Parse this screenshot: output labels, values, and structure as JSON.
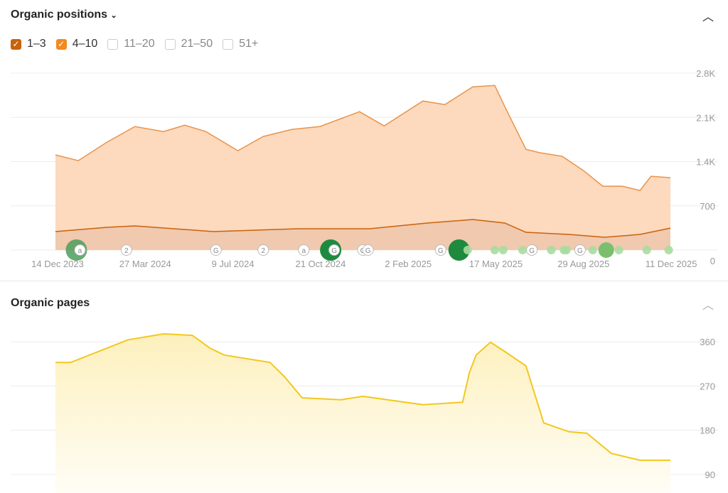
{
  "sections": {
    "positions_title": "Organic positions",
    "pages_title": "Organic pages",
    "dropdown_icon": "chevron-down-icon",
    "collapse_icon": "chevron-up-icon"
  },
  "filters": [
    {
      "label": "1–3",
      "checked": true,
      "color": "#c8620c"
    },
    {
      "label": "4–10",
      "checked": true,
      "color": "#f28a1e"
    },
    {
      "label": "11–20",
      "checked": false
    },
    {
      "label": "21–50",
      "checked": false
    },
    {
      "label": "51+",
      "checked": false
    }
  ],
  "chart_data": [
    {
      "type": "area",
      "stacked": true,
      "y_ticks": [
        "0",
        "700",
        "1.4K",
        "2.1K",
        "2.8K"
      ],
      "ylim": [
        0,
        2800
      ],
      "grid": true,
      "x_ticks": [
        "14 Dec 2023",
        "27 Mar 2024",
        "9 Jul 2024",
        "21 Oct 2024",
        "2 Feb 2025",
        "17 May 2025",
        "29 Aug 2025",
        "11 Dec 2025"
      ],
      "total": {
        "color": "#e8944a",
        "fill": "#fdd9bd",
        "points": [
          [
            "2023-12-14",
            1506
          ],
          [
            "2024-01-10",
            1416
          ],
          [
            "2024-02-13",
            1708
          ],
          [
            "2024-03-17",
            1955
          ],
          [
            "2024-04-20",
            1876
          ],
          [
            "2024-05-15",
            1977
          ],
          [
            "2024-06-09",
            1876
          ],
          [
            "2024-07-17",
            1573
          ],
          [
            "2024-08-16",
            1798
          ],
          [
            "2024-09-19",
            1910
          ],
          [
            "2024-10-22",
            1955
          ],
          [
            "2024-12-08",
            2191
          ],
          [
            "2025-01-06",
            1966
          ],
          [
            "2025-02-21",
            2359
          ],
          [
            "2025-03-19",
            2303
          ],
          [
            "2025-04-21",
            2584
          ],
          [
            "2025-05-17",
            2606
          ],
          [
            "2025-05-29",
            2269
          ],
          [
            "2025-06-23",
            1595
          ],
          [
            "2025-07-10",
            1539
          ],
          [
            "2025-08-05",
            1483
          ],
          [
            "2025-08-30",
            1258
          ],
          [
            "2025-09-22",
            1011
          ],
          [
            "2025-10-15",
            1011
          ],
          [
            "2025-11-05",
            944
          ],
          [
            "2025-11-18",
            1168
          ],
          [
            "2025-12-11",
            1146
          ]
        ]
      },
      "series_1_3": {
        "color": "#c8620c",
        "fill": "#f0c9ae",
        "points": [
          [
            "2023-12-14",
            292
          ],
          [
            "2024-02-13",
            360
          ],
          [
            "2024-03-17",
            382
          ],
          [
            "2024-06-18",
            292
          ],
          [
            "2024-09-27",
            337
          ],
          [
            "2024-12-20",
            337
          ],
          [
            "2025-02-26",
            427
          ],
          [
            "2025-04-21",
            483
          ],
          [
            "2025-05-29",
            427
          ],
          [
            "2025-06-23",
            281
          ],
          [
            "2025-08-13",
            247
          ],
          [
            "2025-09-24",
            202
          ],
          [
            "2025-11-05",
            247
          ],
          [
            "2025-12-11",
            348
          ]
        ]
      },
      "annotations": [
        [
          "2024-01-12",
          "a",
          "big"
        ],
        [
          "2024-03-07",
          "2",
          ""
        ],
        [
          "2024-06-21",
          "G",
          ""
        ],
        [
          "2024-08-16",
          "2",
          ""
        ],
        [
          "2024-10-03",
          "a",
          ""
        ],
        [
          "2024-11-08",
          "G",
          "bigdark"
        ],
        [
          "2024-12-12",
          "G",
          ""
        ],
        [
          "2024-12-18",
          "G",
          ""
        ],
        [
          "2025-03-14",
          "G",
          ""
        ],
        [
          "2025-04-09",
          "",
          "bigdark"
        ],
        [
          "2025-04-15",
          "",
          "light"
        ],
        [
          "2025-05-17",
          "",
          "light"
        ],
        [
          "2025-05-27",
          "",
          "light"
        ],
        [
          "2025-06-19",
          "",
          "light"
        ],
        [
          "2025-06-30",
          "G",
          ""
        ],
        [
          "2025-07-23",
          "",
          "light"
        ],
        [
          "2025-08-07",
          "",
          "light"
        ],
        [
          "2025-08-10",
          "",
          "light"
        ],
        [
          "2025-08-26",
          "G",
          ""
        ],
        [
          "2025-09-10",
          "",
          "light"
        ],
        [
          "2025-09-26",
          "",
          "bigmid"
        ],
        [
          "2025-10-11",
          "",
          "light"
        ],
        [
          "2025-11-13",
          "",
          "light"
        ],
        [
          "2025-12-09",
          "",
          "light"
        ]
      ]
    },
    {
      "type": "area",
      "y_ticks": [
        "90",
        "180",
        "270",
        "360"
      ],
      "ylim": [
        90,
        360
      ],
      "grid": true,
      "color": "#f2c81e",
      "fill": "#fdf3c8",
      "points": [
        [
          "2023-12-14",
          318
        ],
        [
          "2024-01-01",
          318
        ],
        [
          "2024-02-13",
          347
        ],
        [
          "2024-03-09",
          364
        ],
        [
          "2024-04-20",
          376
        ],
        [
          "2024-05-24",
          373
        ],
        [
          "2024-06-14",
          347
        ],
        [
          "2024-07-01",
          333
        ],
        [
          "2024-08-24",
          318
        ],
        [
          "2024-09-10",
          289
        ],
        [
          "2024-10-01",
          246
        ],
        [
          "2024-11-16",
          242
        ],
        [
          "2024-12-12",
          249
        ],
        [
          "2025-01-31",
          237
        ],
        [
          "2025-02-21",
          232
        ],
        [
          "2025-04-09",
          237
        ],
        [
          "2025-04-17",
          297
        ],
        [
          "2025-04-25",
          333
        ],
        [
          "2025-05-12",
          359
        ],
        [
          "2025-05-29",
          340
        ],
        [
          "2025-06-23",
          311
        ],
        [
          "2025-07-14",
          195
        ],
        [
          "2025-08-13",
          177
        ],
        [
          "2025-09-03",
          174
        ],
        [
          "2025-10-02",
          133
        ],
        [
          "2025-11-05",
          119
        ],
        [
          "2025-12-11",
          119
        ]
      ]
    }
  ]
}
